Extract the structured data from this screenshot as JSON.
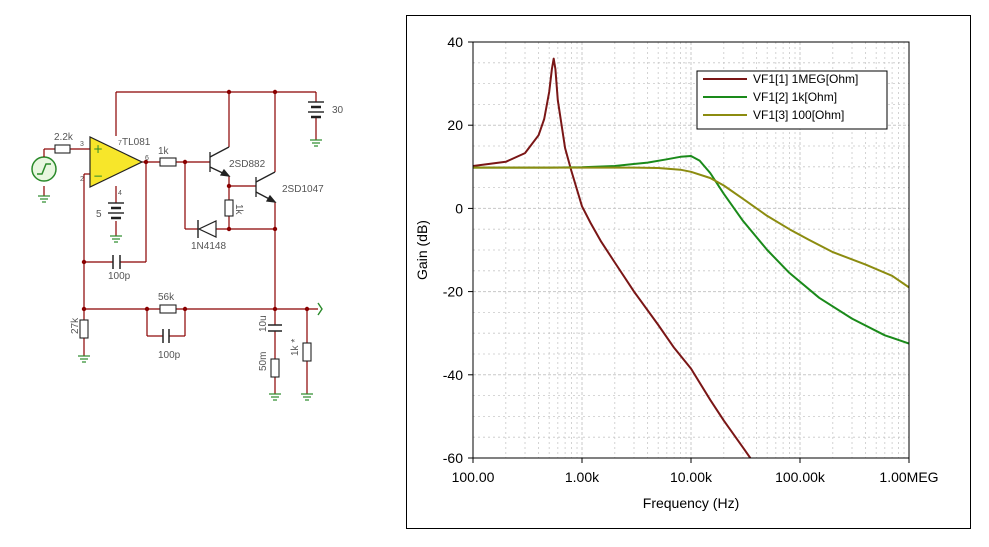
{
  "schematic": {
    "labels": {
      "r_in": "2.2k",
      "opamp": "TL081",
      "pin3": "3",
      "pin2": "2",
      "pin7": "7",
      "pin4": "4",
      "pin6": "6",
      "r_base": "1k",
      "q1": "2SD882",
      "q2": "2SD1047",
      "r_emit": "1k",
      "diode": "1N4148",
      "c_fb": "100p",
      "r_fb": "56k",
      "c_fb2": "100p",
      "r_gnd": "27k",
      "c_out": "10u",
      "r_series": "50m",
      "r_load": "1k *",
      "v_neg": "5",
      "v_pos": "30"
    }
  },
  "chart_data": {
    "type": "line",
    "xscale": "log",
    "xlim": [
      100,
      1000000
    ],
    "ylim": [
      -60,
      40
    ],
    "xlabel": "Frequency (Hz)",
    "ylabel": "Gain (dB)",
    "xticks": [
      {
        "value": 100,
        "label": "100.00"
      },
      {
        "value": 1000,
        "label": "1.00k"
      },
      {
        "value": 10000,
        "label": "10.00k"
      },
      {
        "value": 100000,
        "label": "100.00k"
      },
      {
        "value": 1000000,
        "label": "1.00MEG"
      }
    ],
    "yticks": [
      40,
      20,
      0,
      -20,
      -40,
      -60
    ],
    "grid": true,
    "legend_position": "top-right",
    "series": [
      {
        "name": "VF1[1]  1MEG[Ohm]",
        "color": "#7a1616",
        "x": [
          100,
          200,
          300,
          400,
          450,
          500,
          530,
          550,
          570,
          600,
          700,
          800,
          1000,
          1200,
          1500,
          2000,
          3000,
          5000,
          7000,
          10000,
          15000,
          20000,
          30000,
          35000
        ],
        "y": [
          10.2,
          11.2,
          13.3,
          17.6,
          21.5,
          28,
          33.5,
          36,
          33.5,
          26,
          14.5,
          9,
          0.5,
          -3.5,
          -8,
          -13,
          -20,
          -28,
          -33.5,
          -38.5,
          -46,
          -51,
          -57.5,
          -60
        ]
      },
      {
        "name": "VF1[2]  1k[Ohm]",
        "color": "#1a8a1a",
        "x": [
          100,
          500,
          1000,
          2000,
          4000,
          6000,
          8000,
          10000,
          12000,
          15000,
          20000,
          30000,
          50000,
          80000,
          150000,
          300000,
          600000,
          1000000
        ],
        "y": [
          9.8,
          9.8,
          9.9,
          10.2,
          11,
          11.8,
          12.4,
          12.6,
          11.5,
          8.5,
          3.5,
          -3,
          -10,
          -15.5,
          -21.5,
          -26.5,
          -30.5,
          -32.5
        ]
      },
      {
        "name": "VF1[3]  100[Ohm]",
        "color": "#8c8c10",
        "x": [
          100,
          1000,
          3000,
          5000,
          8000,
          10000,
          15000,
          20000,
          30000,
          50000,
          80000,
          120000,
          200000,
          400000,
          700000,
          1000000
        ],
        "y": [
          9.8,
          9.8,
          9.8,
          9.7,
          9.3,
          8.8,
          7.3,
          5.5,
          2.3,
          -1.8,
          -5,
          -7.5,
          -10.5,
          -13.5,
          -16.2,
          -19
        ]
      }
    ]
  }
}
